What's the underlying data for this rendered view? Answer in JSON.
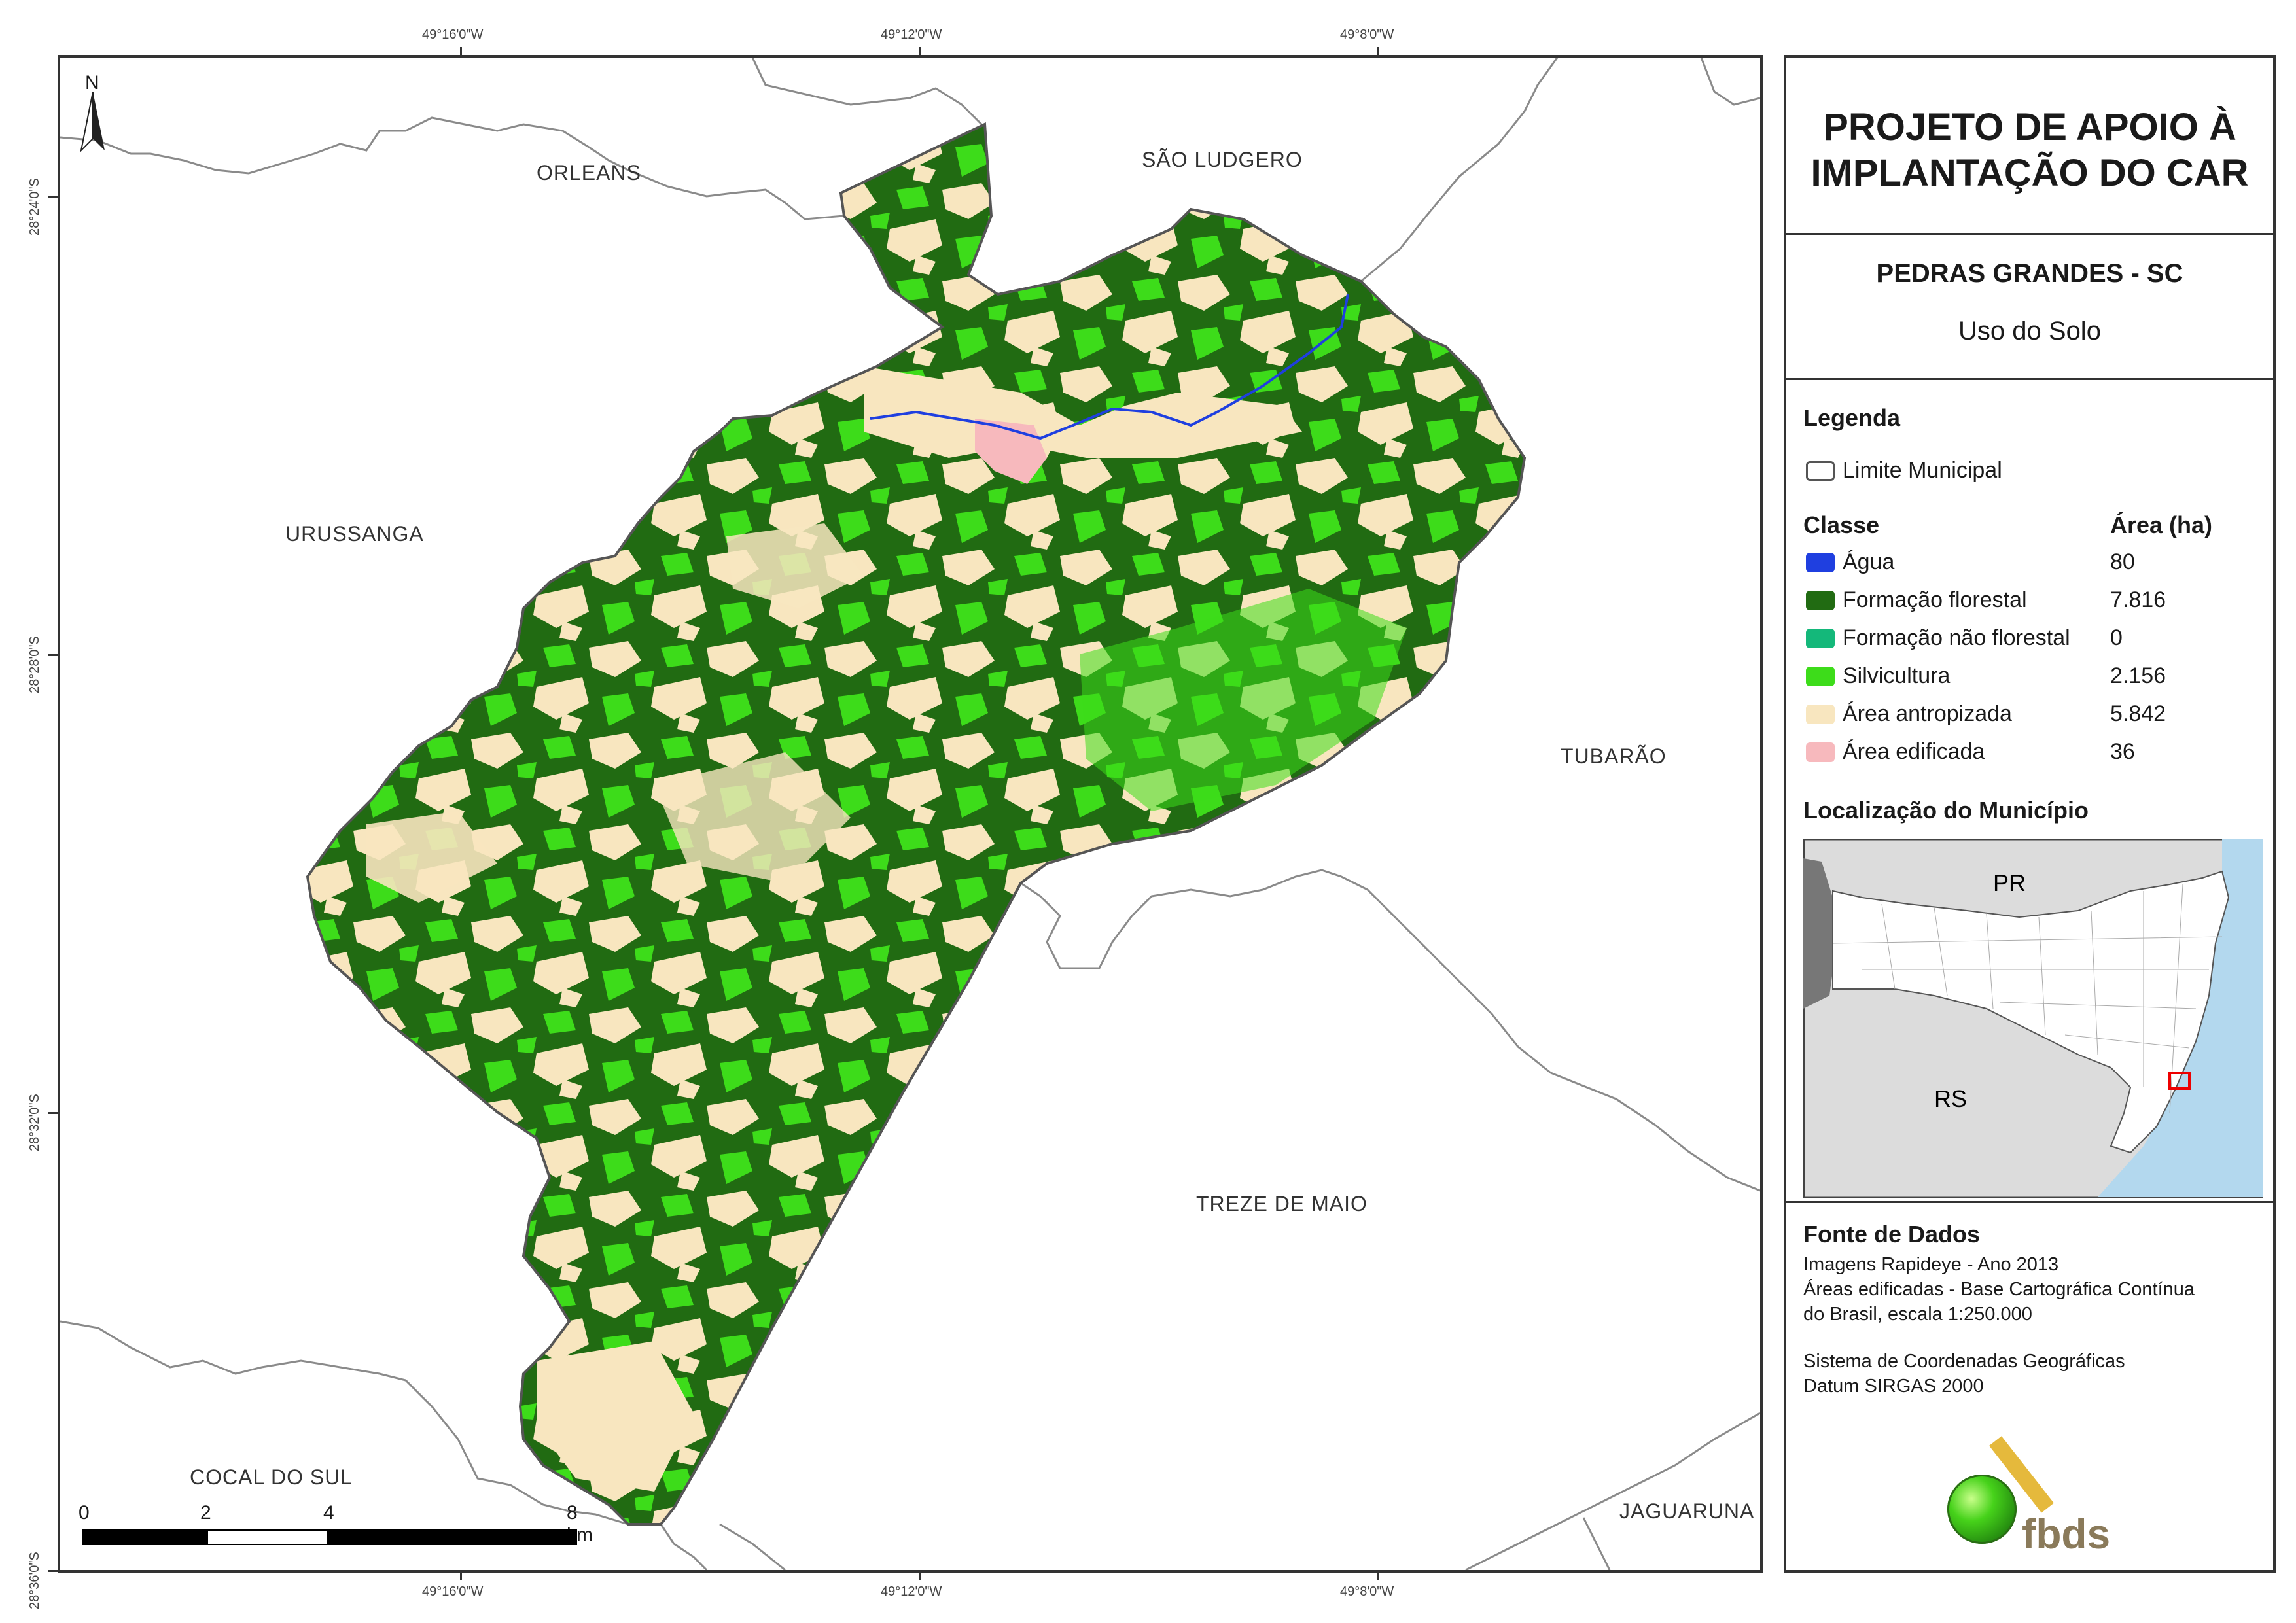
{
  "coords": {
    "top": [
      "49°16'0\"W",
      "49°12'0\"W",
      "49°8'0\"W"
    ],
    "bottom": [
      "49°16'0\"W",
      "49°12'0\"W",
      "49°8'0\"W"
    ],
    "left": [
      "28°24'0\"S",
      "28°28'0\"S",
      "28°32'0\"S",
      "28°36'0\"S"
    ]
  },
  "neighbors": [
    "ORLEANS",
    "SÃO LUDGERO",
    "URUSSANGA",
    "TUBARÃO",
    "TREZE DE MAIO",
    "COCAL DO SUL",
    "JAGUARUNA"
  ],
  "north_label": "N",
  "scale_bar": {
    "labels": [
      "0",
      "2",
      "4",
      "8 km"
    ]
  },
  "panel": {
    "title_line1": "PROJETO DE APOIO À",
    "title_line2": "IMPLANTAÇÃO DO CAR",
    "municipality": "PEDRAS GRANDES - SC",
    "subject": "Uso do Solo",
    "legend_title": "Legenda",
    "limit_label": "Limite Municipal",
    "class_header": "Classe",
    "area_header": "Área (ha)",
    "classes": [
      {
        "name": "Água",
        "area": "80",
        "color": "#1f3fe0"
      },
      {
        "name": "Formação florestal",
        "area": "7.816",
        "color": "#216b12"
      },
      {
        "name": "Formação não florestal",
        "area": "0",
        "color": "#14b87a"
      },
      {
        "name": "Silvicultura",
        "area": "2.156",
        "color": "#3ddc1a"
      },
      {
        "name": "Área antropizada",
        "area": "5.842",
        "color": "#f8e6bf"
      },
      {
        "name": "Área edificada",
        "area": "36",
        "color": "#f7b9bd"
      }
    ],
    "location_title": "Localização do Município",
    "inset_labels": {
      "pr": "PR",
      "rs": "RS"
    },
    "sources_title": "Fonte de Dados",
    "sources": [
      "Imagens Rapideye - Ano 2013",
      "Áreas edificadas - Base Cartográfica Contínua",
      "do Brasil, escala 1:250.000"
    ],
    "crs": [
      "Sistema de Coordenadas Geográficas",
      "Datum SIRGAS 2000"
    ],
    "logo_text": "fbds"
  }
}
